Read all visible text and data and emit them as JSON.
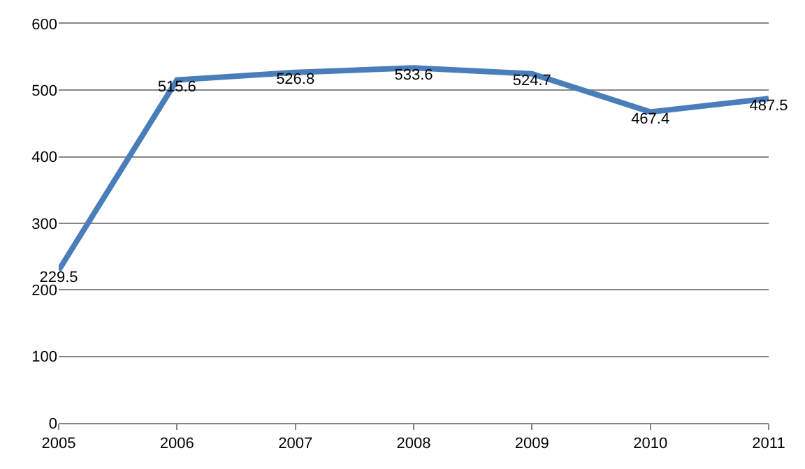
{
  "chart_data": {
    "type": "line",
    "x": [
      2005,
      2006,
      2007,
      2008,
      2009,
      2010,
      2011
    ],
    "series": [
      {
        "color": "#4a7ebb",
        "values": [
          229.5,
          515.6,
          526.8,
          533.6,
          524.7,
          467.4,
          487.5
        ]
      }
    ],
    "xlim": [
      2005,
      2011
    ],
    "xticks": [
      2005,
      2006,
      2007,
      2008,
      2009,
      2010,
      2011
    ],
    "ylim": [
      0,
      600
    ],
    "yticks": [
      0,
      100,
      200,
      300,
      400,
      500,
      600
    ],
    "grid": "y",
    "data_labels": true,
    "marker": "none",
    "line_style": "solid"
  }
}
